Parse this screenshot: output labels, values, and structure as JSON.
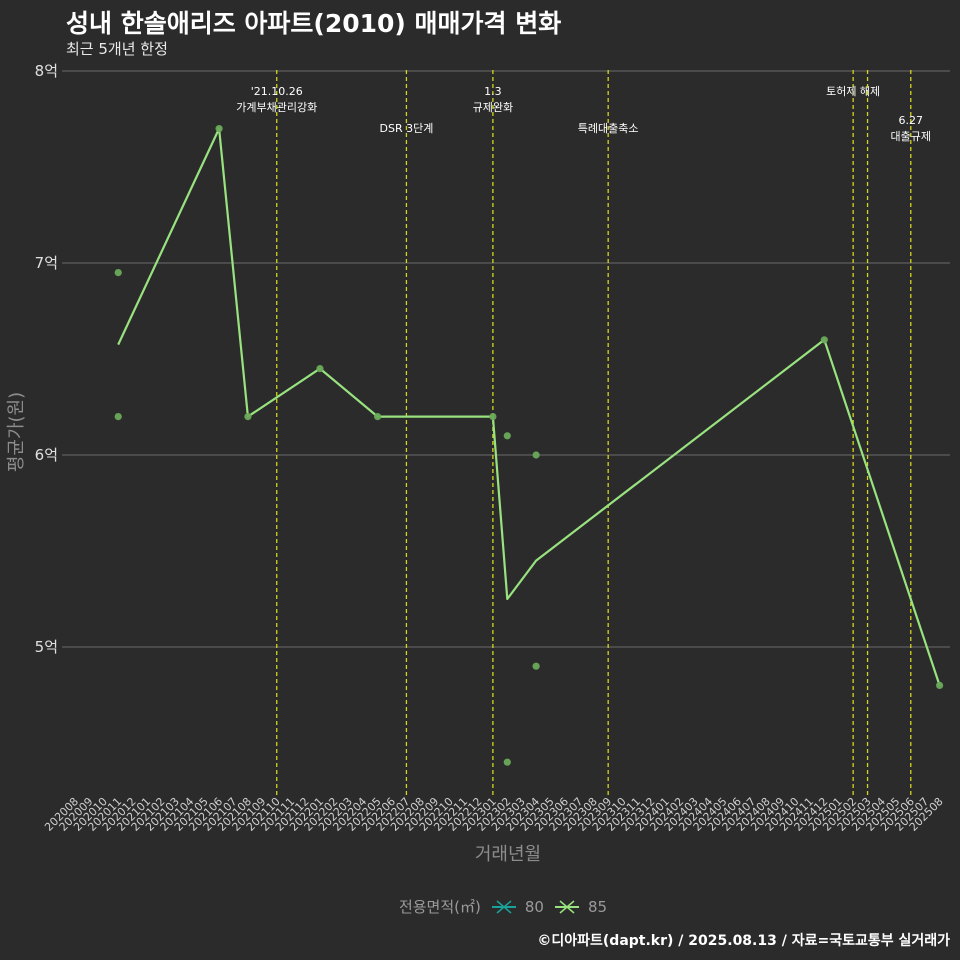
{
  "title": "성내 한솔애리즈 아파트(2010) 매매가격 변화",
  "subtitle": "최근 5개년 한정",
  "credit": "©디아파트(dapt.kr) / 2025.08.13 / 자료=국토교통부 실거래가",
  "legend": {
    "title": "전용면적(㎡)",
    "items": [
      {
        "label": "80",
        "color": "#1aa39a"
      },
      {
        "label": "85",
        "color": "#98e27f"
      }
    ]
  },
  "colors": {
    "background": "#2b2b2b",
    "grid": "#6b6b6b",
    "line": "#98e27f",
    "points": "#6aaa5a",
    "event_line": "#d4d41e"
  },
  "chart_data": {
    "type": "line",
    "title": "성내 한솔애리즈 아파트(2010) 매매가격 변화",
    "subtitle": "최근 5개년 한정",
    "xlabel": "거래년월",
    "ylabel": "평균가(원)",
    "x_categories": [
      "202008",
      "202009",
      "202010",
      "202011",
      "202012",
      "202101",
      "202102",
      "202103",
      "202104",
      "202105",
      "202106",
      "202107",
      "202108",
      "202109",
      "202110",
      "202111",
      "202112",
      "202201",
      "202202",
      "202203",
      "202204",
      "202205",
      "202206",
      "202207",
      "202208",
      "202209",
      "202210",
      "202211",
      "202212",
      "202301",
      "202302",
      "202303",
      "202304",
      "202305",
      "202306",
      "202307",
      "202308",
      "202309",
      "202310",
      "202311",
      "202312",
      "202401",
      "202402",
      "202403",
      "202404",
      "202405",
      "202406",
      "202407",
      "202408",
      "202409",
      "202410",
      "202411",
      "202412",
      "202501",
      "202502",
      "202503",
      "202504",
      "202505",
      "202506",
      "202507",
      "202508"
    ],
    "y_ticks": [
      {
        "value": 5,
        "label": "5억"
      },
      {
        "value": 6,
        "label": "6억"
      },
      {
        "value": 7,
        "label": "7억"
      },
      {
        "value": 8,
        "label": "8억"
      }
    ],
    "ylim": [
      4.25,
      8.0
    ],
    "grid": true,
    "legend_position": "bottom",
    "series": [
      {
        "name": "85",
        "line": [
          {
            "x": "202011",
            "y": 6.575
          },
          {
            "x": "202106",
            "y": 7.7
          },
          {
            "x": "202108",
            "y": 6.2
          },
          {
            "x": "202201",
            "y": 6.45
          },
          {
            "x": "202205",
            "y": 6.2
          },
          {
            "x": "202301",
            "y": 6.2
          },
          {
            "x": "202302",
            "y": 5.25
          },
          {
            "x": "202304",
            "y": 5.45
          },
          {
            "x": "202412",
            "y": 6.6
          },
          {
            "x": "202508",
            "y": 4.8
          }
        ],
        "points": [
          {
            "x": "202011",
            "y": 6.95
          },
          {
            "x": "202011",
            "y": 6.2
          },
          {
            "x": "202106",
            "y": 7.7
          },
          {
            "x": "202108",
            "y": 6.2
          },
          {
            "x": "202201",
            "y": 6.45
          },
          {
            "x": "202205",
            "y": 6.2
          },
          {
            "x": "202301",
            "y": 6.2
          },
          {
            "x": "202302",
            "y": 6.1
          },
          {
            "x": "202302",
            "y": 4.4
          },
          {
            "x": "202304",
            "y": 6.0
          },
          {
            "x": "202304",
            "y": 4.9
          },
          {
            "x": "202412",
            "y": 6.6
          },
          {
            "x": "202508",
            "y": 4.8
          }
        ]
      }
    ],
    "events": [
      {
        "x": "202110",
        "lines": [
          "'21.10.26",
          "가계부채관리강화"
        ],
        "level": 1
      },
      {
        "x": "202207",
        "lines": [
          "DSR 3단계"
        ],
        "level": 2
      },
      {
        "x": "202301",
        "lines": [
          "1.3",
          "규제완화"
        ],
        "level": 1
      },
      {
        "x": "202309",
        "lines": [
          "특례대출축소"
        ],
        "level": 2
      },
      {
        "x": "202502",
        "lines": [
          "토허제 해제"
        ],
        "level": 1
      },
      {
        "x": "202503",
        "lines": [],
        "level": 0
      },
      {
        "x": "202506",
        "lines": [
          "6.27",
          "대출규제"
        ],
        "level": 3
      }
    ]
  }
}
